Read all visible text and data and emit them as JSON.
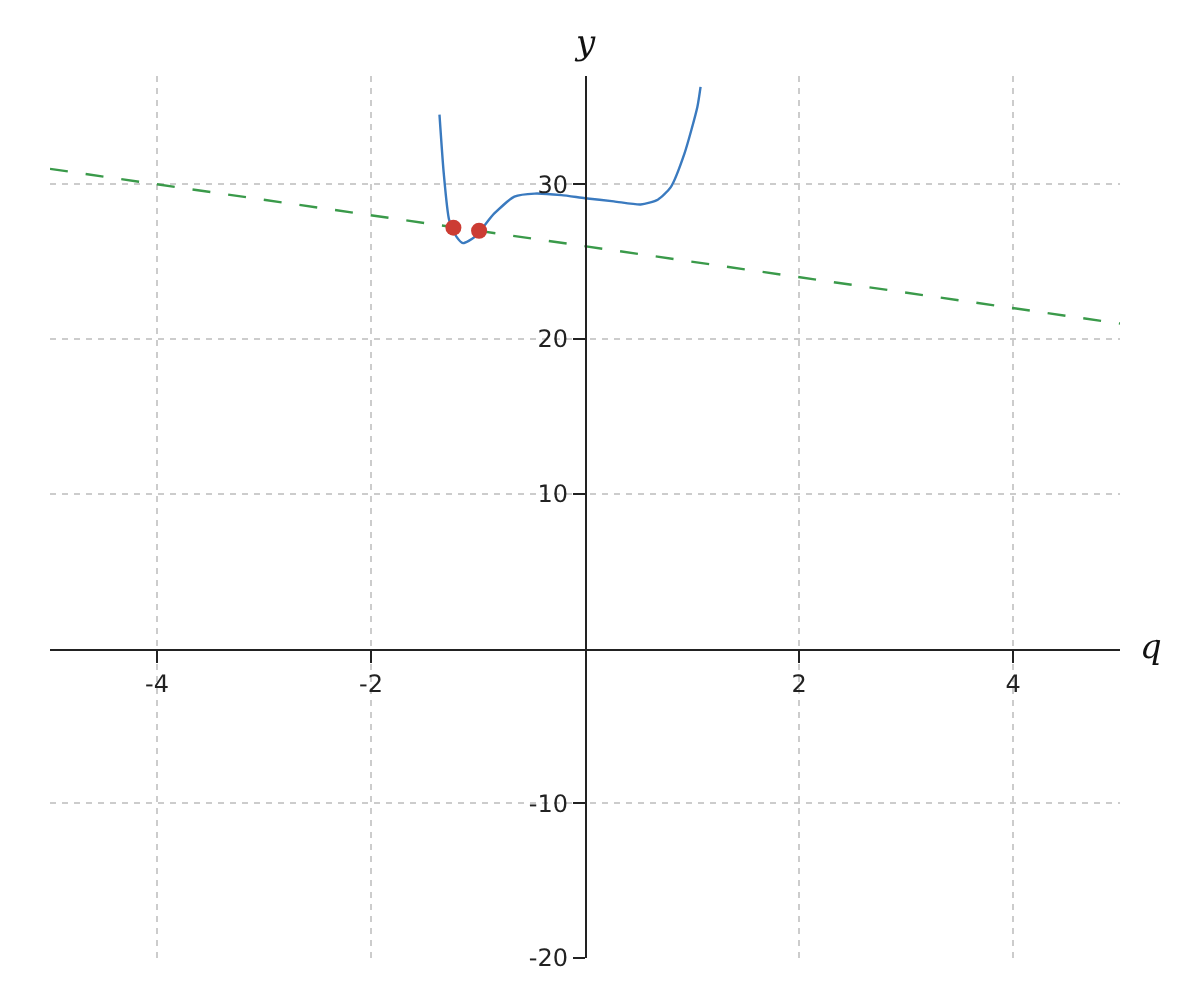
{
  "chart_data": {
    "type": "line",
    "xlabel": "q",
    "ylabel": "y",
    "xlim": [
      -5,
      5
    ],
    "ylim": [
      -20,
      37
    ],
    "xticks": [
      -4,
      -2,
      2,
      4
    ],
    "yticks": [
      -20,
      -10,
      10,
      20,
      30
    ],
    "grid": true,
    "series": [
      {
        "color": "#3a7abf",
        "marker": "none",
        "line_style": "solid",
        "x": [
          -1.36,
          -1.32,
          -1.27,
          -1.2,
          -1.14,
          -1.03,
          -0.85,
          -0.66,
          -0.47,
          -0.22,
          0,
          0.27,
          0.52,
          0.68,
          0.8,
          0.93,
          1.05,
          1.08
        ],
        "values": [
          34.5,
          30.7,
          27.7,
          26.6,
          26.2,
          26.6,
          28.1,
          29.2,
          29.4,
          29.3,
          29.1,
          28.9,
          28.7,
          29.0,
          29.8,
          32.0,
          35.0,
          36.3
        ]
      },
      {
        "type": "line",
        "color": "#3a9a4a",
        "marker": "none",
        "line_style": "dashed",
        "x": [
          -5,
          5
        ],
        "values": [
          31,
          21
        ]
      },
      {
        "type": "scatter",
        "color": "#cc3c33",
        "marker": "circle",
        "x": [
          -1.23,
          -0.99
        ],
        "values": [
          27.2,
          27.0
        ]
      }
    ]
  }
}
